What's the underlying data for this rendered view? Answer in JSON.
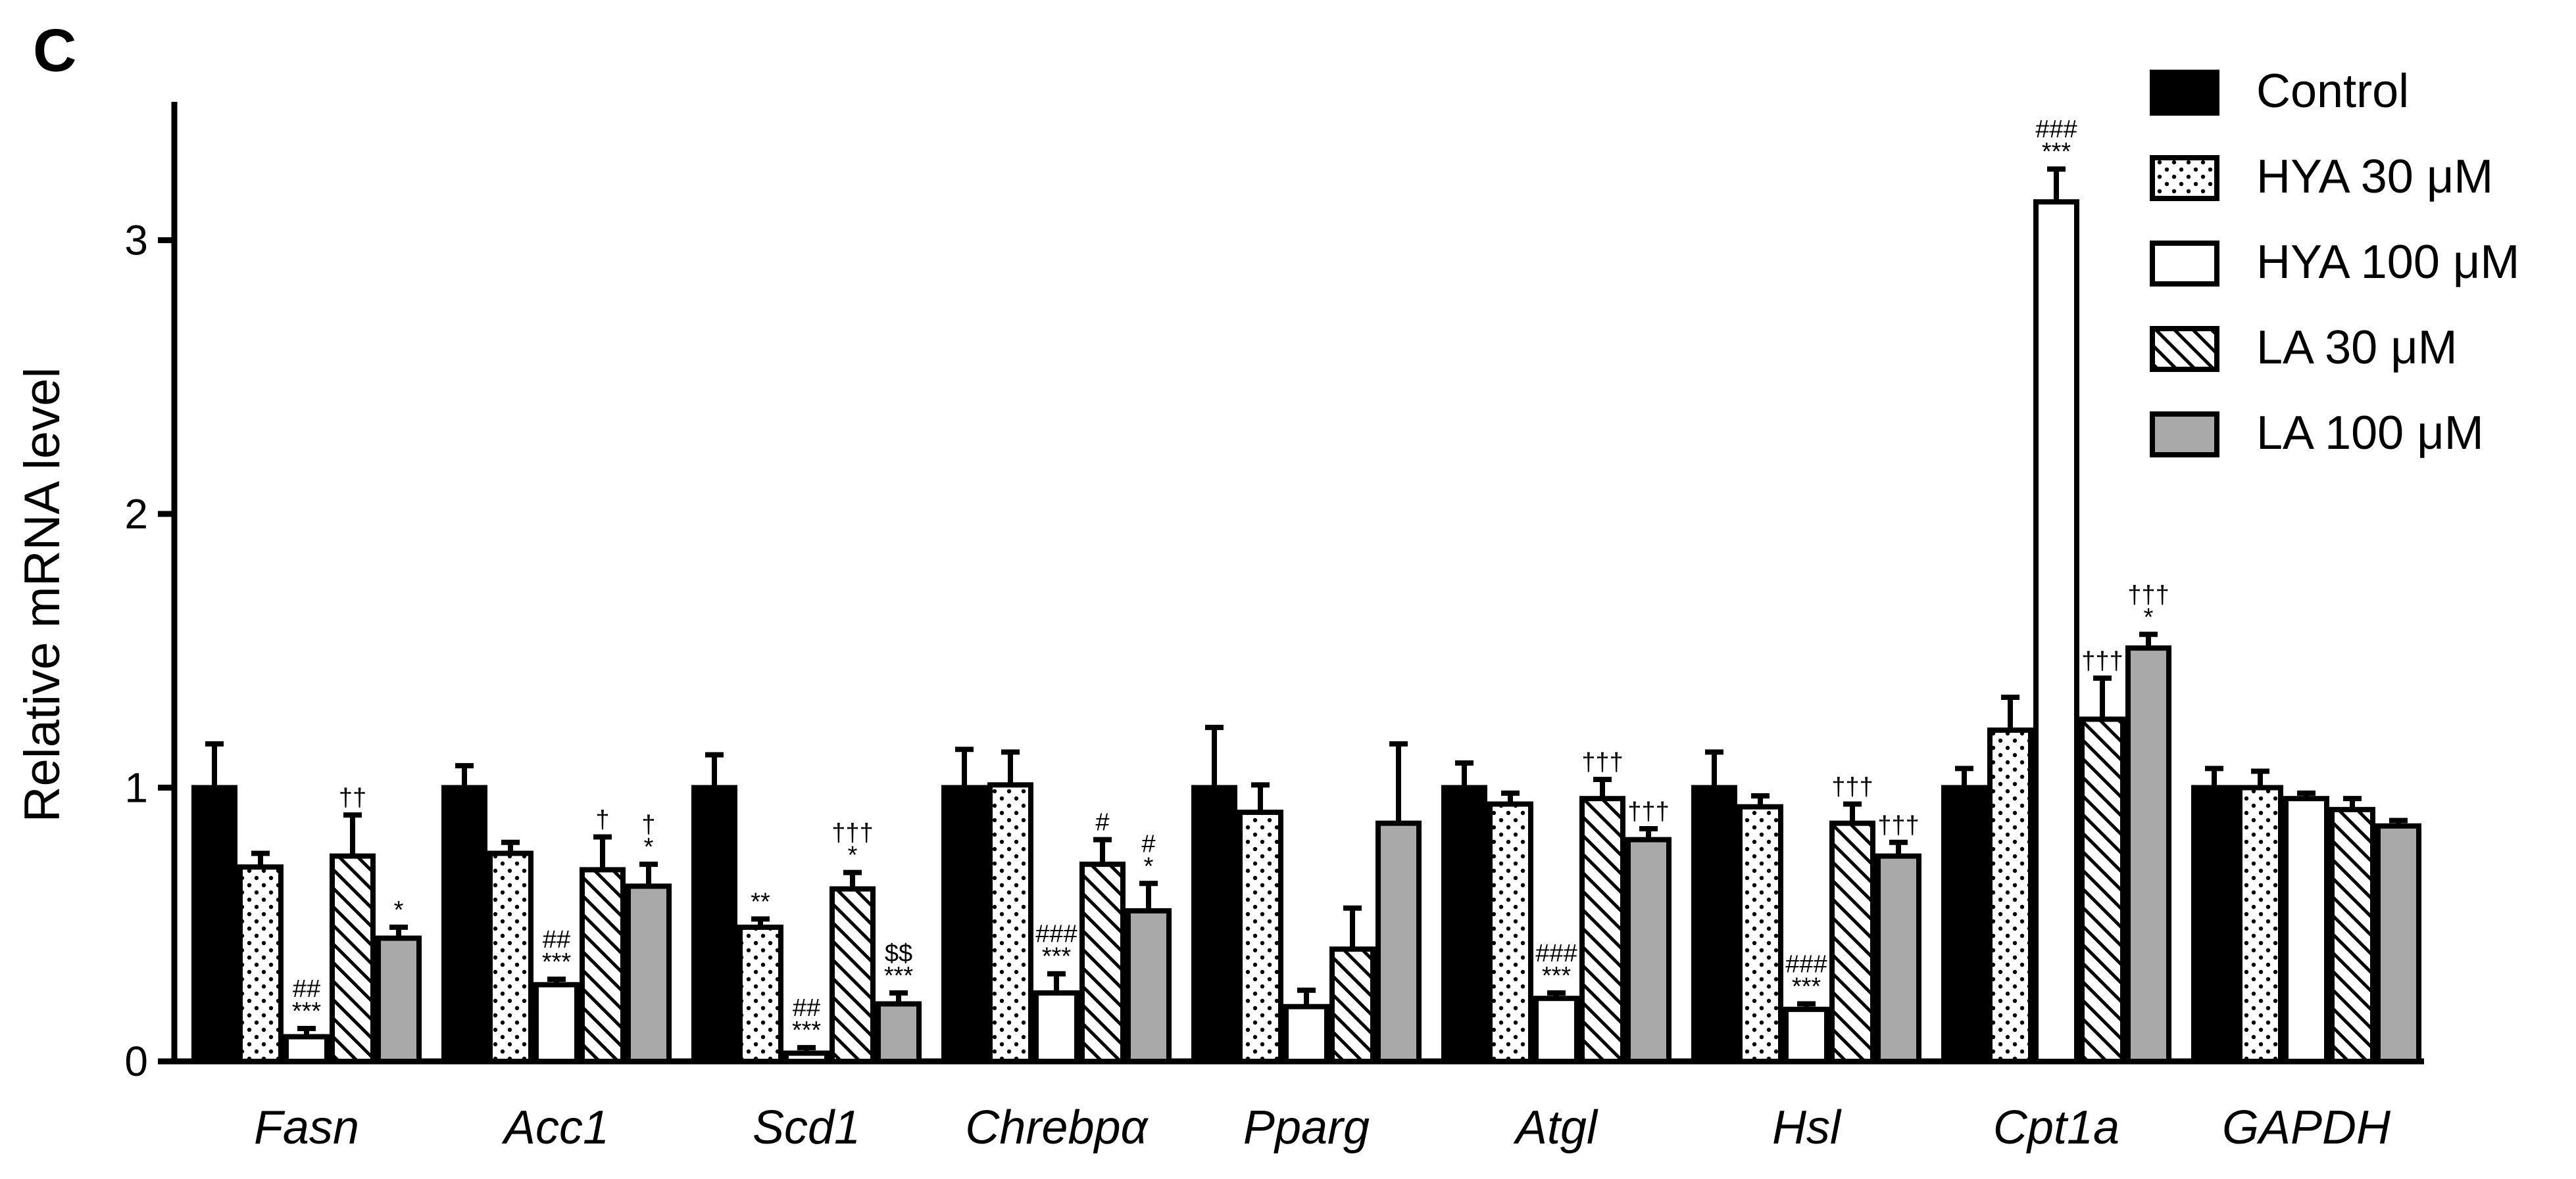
{
  "panel_label": "C",
  "chart_data": {
    "type": "bar",
    "ylabel": "Relative mRNA level",
    "xlabel": "",
    "ylim": [
      0,
      3.5
    ],
    "yticks": [
      "0",
      "1",
      "2",
      "3"
    ],
    "categories": [
      "Fasn",
      "Acc1",
      "Scd1",
      "Chrebpα",
      "Pparg",
      "Atgl",
      "Hsl",
      "Cpt1a",
      "GAPDH"
    ],
    "series": [
      {
        "name": "Control",
        "pattern": "solid-black",
        "values": [
          1.0,
          1.0,
          1.0,
          1.0,
          1.0,
          1.0,
          1.0,
          1.0,
          1.0
        ],
        "errors": [
          0.16,
          0.08,
          0.12,
          0.14,
          0.22,
          0.09,
          0.13,
          0.07,
          0.07
        ],
        "annotations": [
          "",
          "",
          "",
          "",
          "",
          "",
          "",
          "",
          ""
        ]
      },
      {
        "name": "HYA 30 μM",
        "pattern": "dotted",
        "values": [
          0.71,
          0.76,
          0.49,
          1.01,
          0.91,
          0.94,
          0.93,
          1.21,
          1.0
        ],
        "errors": [
          0.05,
          0.04,
          0.03,
          0.12,
          0.1,
          0.04,
          0.04,
          0.12,
          0.06
        ],
        "annotations": [
          "",
          "",
          "**",
          "",
          "",
          "",
          "",
          "",
          ""
        ]
      },
      {
        "name": "HYA 100 μM",
        "pattern": "white",
        "values": [
          0.09,
          0.28,
          0.03,
          0.25,
          0.2,
          0.23,
          0.19,
          3.14,
          0.96
        ],
        "errors": [
          0.03,
          0.02,
          0.02,
          0.07,
          0.06,
          0.02,
          0.02,
          0.12,
          0.02
        ],
        "annotations": [
          "##\n***",
          "##\n***",
          "##\n***",
          "###\n***",
          "",
          "###\n***",
          "###\n***",
          "###\n***",
          ""
        ]
      },
      {
        "name": "LA 30 μM",
        "pattern": "hatched",
        "values": [
          0.75,
          0.7,
          0.63,
          0.72,
          0.41,
          0.96,
          0.87,
          1.25,
          0.92
        ],
        "errors": [
          0.15,
          0.12,
          0.06,
          0.09,
          0.15,
          0.07,
          0.07,
          0.15,
          0.04
        ],
        "annotations": [
          "††",
          "†",
          "†††\n*",
          "#",
          "",
          "†††",
          "†††",
          "†††",
          ""
        ]
      },
      {
        "name": "LA 100 μM",
        "pattern": "gray",
        "values": [
          0.45,
          0.64,
          0.21,
          0.55,
          0.87,
          0.81,
          0.75,
          1.51,
          0.86
        ],
        "errors": [
          0.04,
          0.08,
          0.04,
          0.1,
          0.29,
          0.04,
          0.05,
          0.05,
          0.02
        ],
        "annotations": [
          "*",
          "†\n*",
          "$$\n***",
          "#\n*",
          "",
          "†††",
          "†††",
          "†††\n*",
          ""
        ]
      }
    ],
    "colors": {
      "black": "#000000",
      "white": "#ffffff",
      "gray": "#a9a9a9"
    },
    "legend_position": "top-right"
  }
}
